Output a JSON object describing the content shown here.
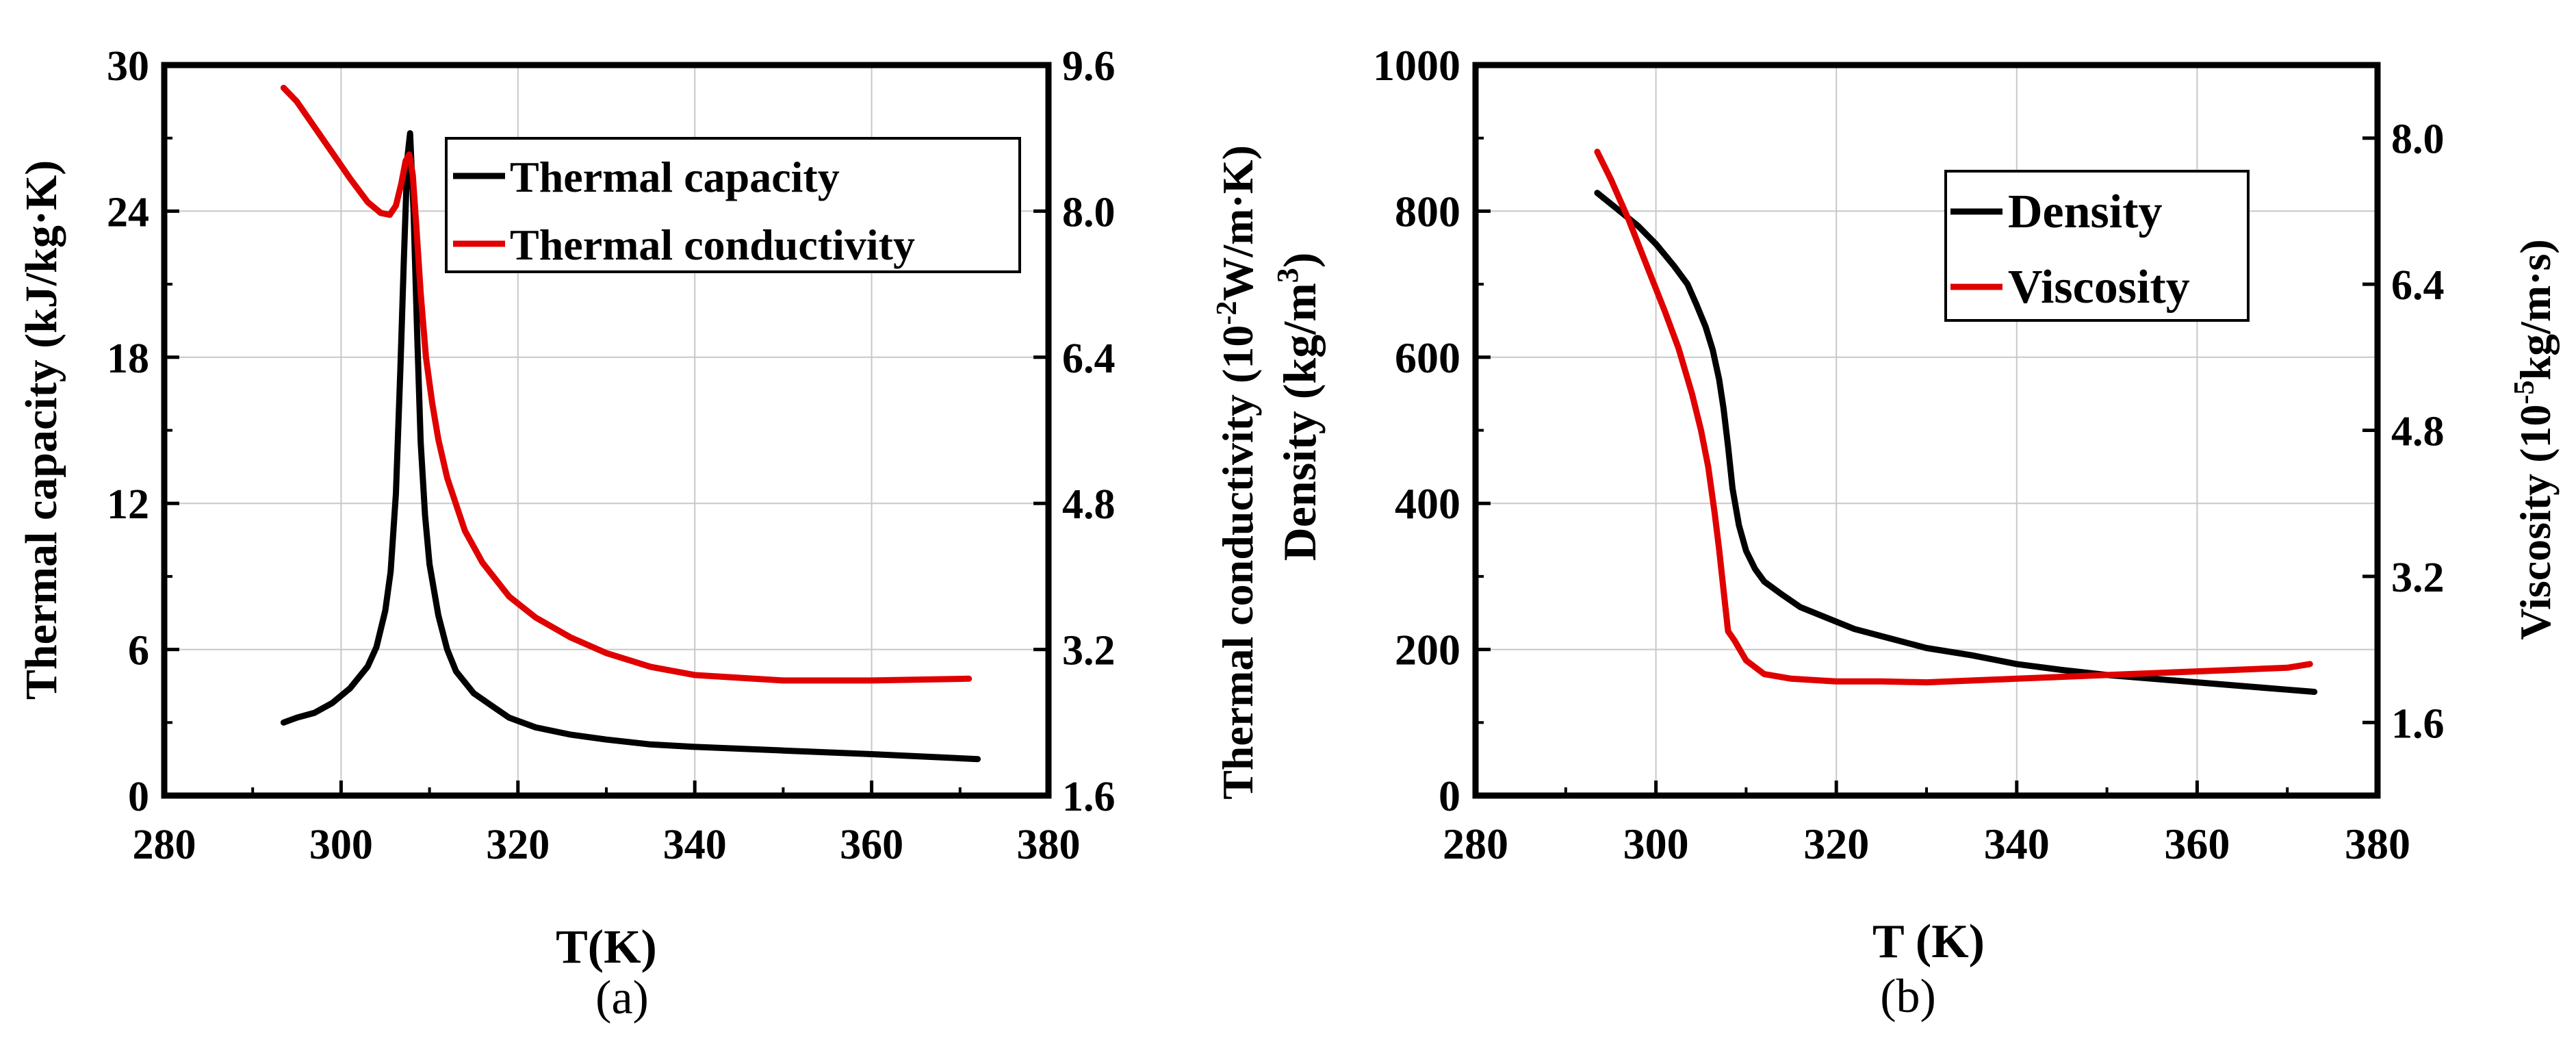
{
  "chart_data": [
    {
      "id": "a",
      "type": "line",
      "caption": "(a)",
      "xlabel": "T(K)",
      "ylabel_left": "Thermal capacity (kJ/kg·K)",
      "ylabel_right_main": "Thermal conductivity (10",
      "ylabel_right_exp": "-2",
      "ylabel_right_tail": "W/m·K)",
      "xlim": [
        280,
        380
      ],
      "ylim_left": [
        0,
        30
      ],
      "ylim_right": [
        1.6,
        9.6
      ],
      "xticks": [
        "280",
        "300",
        "320",
        "340",
        "360",
        "380"
      ],
      "yticks_left": [
        "0",
        "6",
        "12",
        "18",
        "24",
        "30"
      ],
      "yticks_right": [
        "1.6",
        "3.2",
        "4.8",
        "6.4",
        "8.0",
        "9.6"
      ],
      "grid": true,
      "legend_position": "top-right",
      "series": [
        {
          "name": "Thermal capacity",
          "axis": "left",
          "color": "#000000",
          "x": [
            293.5,
            295,
            297,
            299,
            301,
            303,
            304,
            305,
            305.6,
            306.2,
            306.7,
            307.1,
            307.5,
            307.8,
            308.2,
            308.6,
            309,
            309.5,
            310,
            311,
            312,
            313,
            315,
            317,
            319,
            322,
            326,
            330,
            335,
            340,
            350,
            360,
            372
          ],
          "values": [
            3.0,
            3.2,
            3.4,
            3.8,
            4.4,
            5.3,
            6.1,
            7.6,
            9.2,
            12.4,
            17.5,
            22.0,
            26.2,
            27.2,
            24.0,
            19.0,
            14.5,
            11.5,
            9.5,
            7.4,
            6.0,
            5.1,
            4.2,
            3.7,
            3.2,
            2.8,
            2.5,
            2.3,
            2.1,
            2.0,
            1.85,
            1.7,
            1.5
          ]
        },
        {
          "name": "Thermal conductivity",
          "axis": "right",
          "color": "#e00000",
          "x": [
            293.5,
            295,
            297,
            299,
            301,
            303,
            304.5,
            305.5,
            306.2,
            306.8,
            307.3,
            307.7,
            308.1,
            308.5,
            309,
            309.6,
            310.3,
            311,
            312,
            314,
            316,
            319,
            322,
            326,
            330,
            335,
            340,
            350,
            360,
            371
          ],
          "values": [
            9.35,
            9.2,
            8.92,
            8.64,
            8.36,
            8.1,
            7.98,
            7.96,
            8.06,
            8.3,
            8.55,
            8.62,
            8.4,
            7.85,
            7.1,
            6.4,
            5.9,
            5.5,
            5.08,
            4.5,
            4.15,
            3.78,
            3.55,
            3.33,
            3.16,
            3.01,
            2.92,
            2.86,
            2.86,
            2.88
          ]
        }
      ]
    },
    {
      "id": "b",
      "type": "line",
      "caption": "(b)",
      "xlabel": "T (K)",
      "ylabel_left_main": "Density (kg/m",
      "ylabel_left_exp": "3",
      "ylabel_left_tail": ")",
      "ylabel_right_main": "Viscosity (10",
      "ylabel_right_exp": "-5",
      "ylabel_right_tail": "kg/m·s)",
      "xlim": [
        280,
        380
      ],
      "ylim_left": [
        0,
        1000
      ],
      "ylim_right": [
        0.8,
        8.8
      ],
      "xticks": [
        "280",
        "300",
        "320",
        "340",
        "360",
        "380"
      ],
      "yticks_left": [
        "0",
        "200",
        "400",
        "600",
        "800",
        "1000"
      ],
      "yticks_right": [
        "1.6",
        "3.2",
        "4.8",
        "6.4",
        "8.0"
      ],
      "grid": true,
      "legend_position": "top-right",
      "series": [
        {
          "name": "Density",
          "axis": "left",
          "color": "#000000",
          "x": [
            293.5,
            296,
            298,
            300,
            302,
            303.5,
            304.5,
            305.5,
            306.3,
            307,
            307.5,
            308,
            308.5,
            309.2,
            310,
            311,
            312,
            314,
            316,
            319,
            322,
            326,
            330,
            335,
            340,
            345,
            350,
            355,
            360,
            365,
            370,
            373
          ],
          "values": [
            825,
            800,
            780,
            755,
            725,
            700,
            672,
            642,
            610,
            570,
            530,
            478,
            420,
            370,
            335,
            310,
            293,
            275,
            258,
            243,
            228,
            215,
            202,
            192,
            180,
            172,
            165,
            160,
            155,
            150,
            145,
            142
          ]
        },
        {
          "name": "Viscosity",
          "axis": "right",
          "color": "#e00000",
          "x": [
            293.5,
            295,
            297,
            299,
            301,
            302.5,
            304,
            305,
            305.8,
            306.5,
            307,
            307.5,
            308,
            308.7,
            310,
            312,
            315,
            320,
            325,
            330,
            340,
            350,
            360,
            370,
            372.5
          ],
          "values": [
            7.85,
            7.55,
            7.1,
            6.6,
            6.1,
            5.7,
            5.2,
            4.8,
            4.4,
            3.9,
            3.5,
            3.05,
            2.6,
            2.5,
            2.28,
            2.13,
            2.08,
            2.05,
            2.05,
            2.04,
            2.08,
            2.12,
            2.16,
            2.2,
            2.24
          ]
        }
      ]
    }
  ]
}
